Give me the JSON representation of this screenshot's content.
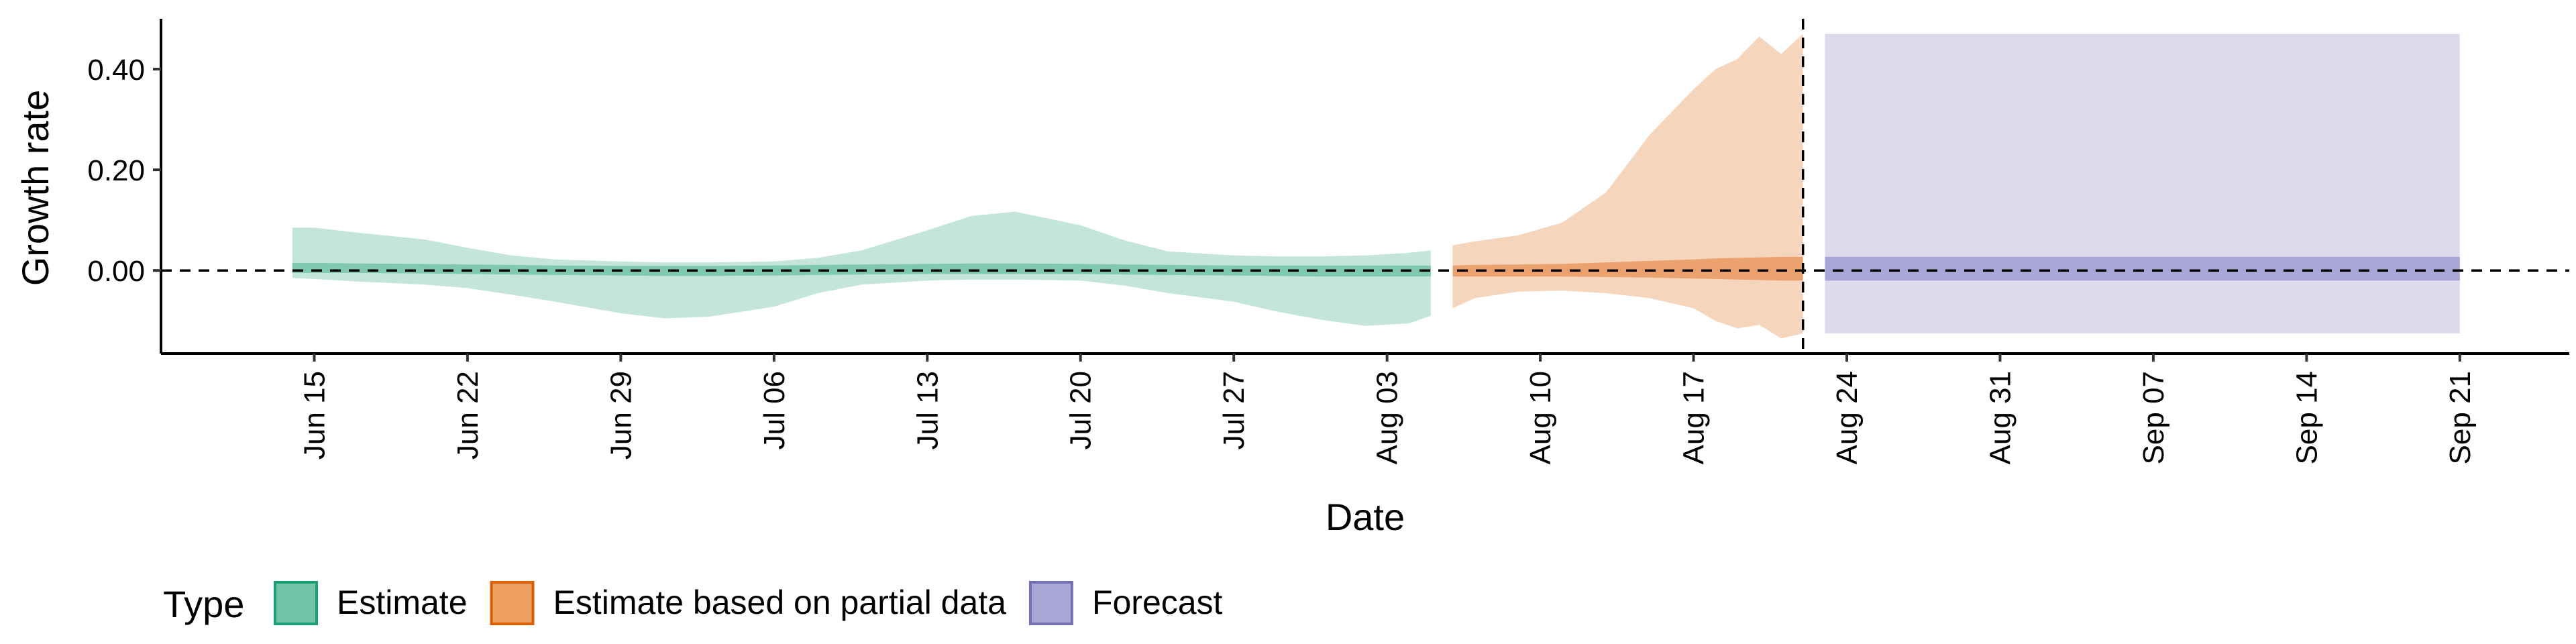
{
  "chart_data": {
    "type": "area",
    "ylabel": "Growth rate",
    "xlabel": "Date",
    "y_ticks": [
      {
        "value": 0.4,
        "label": "0.40"
      },
      {
        "value": 0.2,
        "label": "0.20"
      },
      {
        "value": 0.0,
        "label": "0.00"
      }
    ],
    "ylim": [
      -0.165,
      0.5
    ],
    "x_ticks": [
      "Jun 15",
      "Jun 22",
      "Jun 29",
      "Jul 06",
      "Jul 13",
      "Jul 20",
      "Jul 27",
      "Aug 03",
      "Aug 10",
      "Aug 17",
      "Aug 24",
      "Aug 31",
      "Sep 07",
      "Sep 14",
      "Sep 21"
    ],
    "x_tick_dates": [
      "2020-06-15",
      "2020-06-22",
      "2020-06-29",
      "2020-07-06",
      "2020-07-13",
      "2020-07-20",
      "2020-07-27",
      "2020-08-03",
      "2020-08-10",
      "2020-08-17",
      "2020-08-24",
      "2020-08-31",
      "2020-09-07",
      "2020-09-14",
      "2020-09-21"
    ],
    "xlim": [
      "2020-06-08",
      "2020-09-26"
    ],
    "reference_hline": 0,
    "reference_vline": "2020-08-22",
    "legend": {
      "title": "Type",
      "placement": "bottom-left",
      "entries": [
        {
          "label": "Estimate",
          "fill": "#72c4a7",
          "stroke": "#1b9e77"
        },
        {
          "label": "Estimate based on partial data",
          "fill": "#eda062",
          "stroke": "#d95f02"
        },
        {
          "label": "Forecast",
          "fill": "#a9a5d4",
          "stroke": "#7570b3"
        }
      ]
    }
  },
  "colors": {
    "estimate_outer": "#c4e6da",
    "estimate_inner": "#80c9ae",
    "partial_outer": "#f6d5bd",
    "partial_inner": "#eba26e",
    "forecast_outer": "#dcdaec",
    "forecast_inner": "#a9a5d4"
  },
  "series": [
    {
      "name": "Estimate",
      "key": "estimate",
      "points": [
        {
          "d": "2020-06-14",
          "lo90": -0.015,
          "hi90": 0.085,
          "lo50": -0.005,
          "hi50": 0.015
        },
        {
          "d": "2020-06-15",
          "lo90": -0.017,
          "hi90": 0.085,
          "lo50": -0.005,
          "hi50": 0.015
        },
        {
          "d": "2020-06-17",
          "lo90": -0.022,
          "hi90": 0.075,
          "lo50": -0.005,
          "hi50": 0.014
        },
        {
          "d": "2020-06-20",
          "lo90": -0.028,
          "hi90": 0.062,
          "lo50": -0.006,
          "hi50": 0.013
        },
        {
          "d": "2020-06-22",
          "lo90": -0.035,
          "hi90": 0.045,
          "lo50": -0.007,
          "hi50": 0.012
        },
        {
          "d": "2020-06-24",
          "lo90": -0.048,
          "hi90": 0.03,
          "lo50": -0.008,
          "hi50": 0.011
        },
        {
          "d": "2020-06-26",
          "lo90": -0.062,
          "hi90": 0.022,
          "lo50": -0.009,
          "hi50": 0.01
        },
        {
          "d": "2020-06-29",
          "lo90": -0.085,
          "hi90": 0.018,
          "lo50": -0.01,
          "hi50": 0.009
        },
        {
          "d": "2020-07-01",
          "lo90": -0.095,
          "hi90": 0.016,
          "lo50": -0.011,
          "hi50": 0.009
        },
        {
          "d": "2020-07-03",
          "lo90": -0.092,
          "hi90": 0.016,
          "lo50": -0.011,
          "hi50": 0.009
        },
        {
          "d": "2020-07-06",
          "lo90": -0.072,
          "hi90": 0.018,
          "lo50": -0.01,
          "hi50": 0.01
        },
        {
          "d": "2020-07-08",
          "lo90": -0.045,
          "hi90": 0.025,
          "lo50": -0.009,
          "hi50": 0.011
        },
        {
          "d": "2020-07-10",
          "lo90": -0.028,
          "hi90": 0.04,
          "lo50": -0.008,
          "hi50": 0.012
        },
        {
          "d": "2020-07-13",
          "lo90": -0.02,
          "hi90": 0.08,
          "lo50": -0.007,
          "hi50": 0.013
        },
        {
          "d": "2020-07-15",
          "lo90": -0.018,
          "hi90": 0.108,
          "lo50": -0.007,
          "hi50": 0.014
        },
        {
          "d": "2020-07-17",
          "lo90": -0.018,
          "hi90": 0.117,
          "lo50": -0.007,
          "hi50": 0.014
        },
        {
          "d": "2020-07-20",
          "lo90": -0.02,
          "hi90": 0.09,
          "lo50": -0.007,
          "hi50": 0.013
        },
        {
          "d": "2020-07-22",
          "lo90": -0.03,
          "hi90": 0.06,
          "lo50": -0.008,
          "hi50": 0.012
        },
        {
          "d": "2020-07-24",
          "lo90": -0.045,
          "hi90": 0.038,
          "lo50": -0.009,
          "hi50": 0.011
        },
        {
          "d": "2020-07-27",
          "lo90": -0.062,
          "hi90": 0.03,
          "lo50": -0.01,
          "hi50": 0.01
        },
        {
          "d": "2020-07-29",
          "lo90": -0.082,
          "hi90": 0.028,
          "lo50": -0.011,
          "hi50": 0.01
        },
        {
          "d": "2020-07-31",
          "lo90": -0.098,
          "hi90": 0.028,
          "lo50": -0.012,
          "hi50": 0.01
        },
        {
          "d": "2020-08-02",
          "lo90": -0.11,
          "hi90": 0.03,
          "lo50": -0.012,
          "hi50": 0.01
        },
        {
          "d": "2020-08-04",
          "lo90": -0.105,
          "hi90": 0.035,
          "lo50": -0.012,
          "hi50": 0.01
        },
        {
          "d": "2020-08-05",
          "lo90": -0.09,
          "hi90": 0.04,
          "lo50": -0.012,
          "hi50": 0.01
        }
      ]
    },
    {
      "name": "Estimate based on partial data",
      "key": "partial",
      "points": [
        {
          "d": "2020-08-06",
          "lo90": -0.075,
          "hi90": 0.05,
          "lo50": -0.012,
          "hi50": 0.01
        },
        {
          "d": "2020-08-07",
          "lo90": -0.055,
          "hi90": 0.058,
          "lo50": -0.012,
          "hi50": 0.011
        },
        {
          "d": "2020-08-09",
          "lo90": -0.042,
          "hi90": 0.07,
          "lo50": -0.012,
          "hi50": 0.012
        },
        {
          "d": "2020-08-11",
          "lo90": -0.04,
          "hi90": 0.095,
          "lo50": -0.012,
          "hi50": 0.013
        },
        {
          "d": "2020-08-13",
          "lo90": -0.045,
          "hi90": 0.155,
          "lo50": -0.013,
          "hi50": 0.016
        },
        {
          "d": "2020-08-15",
          "lo90": -0.055,
          "hi90": 0.27,
          "lo50": -0.014,
          "hi50": 0.019
        },
        {
          "d": "2020-08-17",
          "lo90": -0.075,
          "hi90": 0.36,
          "lo50": -0.016,
          "hi50": 0.022
        },
        {
          "d": "2020-08-18",
          "lo90": -0.1,
          "hi90": 0.4,
          "lo50": -0.017,
          "hi50": 0.024
        },
        {
          "d": "2020-08-19",
          "lo90": -0.115,
          "hi90": 0.42,
          "lo50": -0.018,
          "hi50": 0.025
        },
        {
          "d": "2020-08-20",
          "lo90": -0.108,
          "hi90": 0.465,
          "lo50": -0.019,
          "hi50": 0.026
        },
        {
          "d": "2020-08-21",
          "lo90": -0.135,
          "hi90": 0.43,
          "lo50": -0.02,
          "hi50": 0.027
        },
        {
          "d": "2020-08-22",
          "lo90": -0.125,
          "hi90": 0.47,
          "lo50": -0.02,
          "hi50": 0.027
        }
      ]
    },
    {
      "name": "Forecast",
      "key": "forecast",
      "points": [
        {
          "d": "2020-08-23",
          "lo90": -0.125,
          "hi90": 0.47,
          "lo50": -0.02,
          "hi50": 0.027
        },
        {
          "d": "2020-09-21",
          "lo90": -0.125,
          "hi90": 0.47,
          "lo50": -0.02,
          "hi50": 0.027
        }
      ]
    }
  ]
}
